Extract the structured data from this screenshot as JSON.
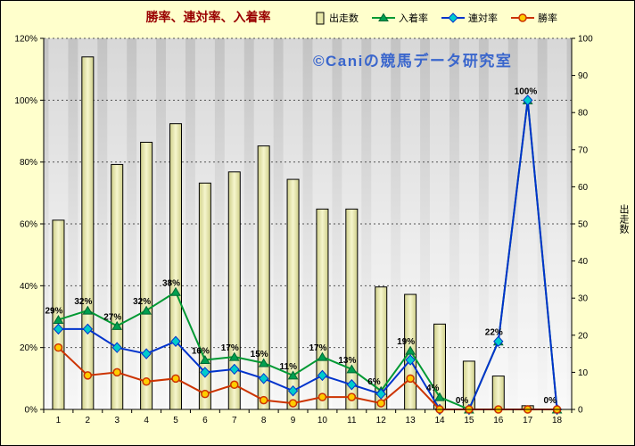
{
  "title": "勝率、連対率、入着率",
  "watermark": "©Caniの競馬データ研究室",
  "legend": [
    {
      "label": "出走数",
      "swatch": "bar-swatch"
    },
    {
      "label": "入着率",
      "swatch": "triangle-swatch"
    },
    {
      "label": "連対率",
      "swatch": "diamond-swatch"
    },
    {
      "label": "勝率",
      "swatch": "circle-swatch"
    }
  ],
  "colors": {
    "background": "#FFFFCC",
    "title": "#990000",
    "watermark": "#3A66CC",
    "bar_fill_edge": "#CFCF8A",
    "bar_fill_center": "#F6F6CD",
    "placing_rate": "#009933",
    "quinella_rate": "#0033CC",
    "win_rate": "#CC3300"
  },
  "chart_data": {
    "type": "bar",
    "subtype": "combo-bar-lines",
    "title": "勝率、連対率、入着率",
    "categories": [
      "1",
      "2",
      "3",
      "4",
      "5",
      "6",
      "7",
      "8",
      "9",
      "10",
      "11",
      "12",
      "13",
      "14",
      "15",
      "16",
      "17",
      "18"
    ],
    "bar_series": {
      "name": "出走数",
      "key": "starts",
      "axis": "right",
      "values": [
        51,
        95,
        66,
        72,
        77,
        61,
        64,
        71,
        62,
        54,
        54,
        33,
        31,
        23,
        13,
        9,
        1,
        0
      ]
    },
    "line_series": [
      {
        "name": "入着率",
        "key": "placing-rate",
        "marker": "triangle",
        "color": "#009933",
        "marker_fill": "#00A050",
        "values": [
          29,
          32,
          27,
          32,
          38,
          16,
          17,
          15,
          11,
          17,
          13,
          6,
          19,
          4,
          0,
          22,
          100,
          0
        ],
        "labels": [
          "29%",
          "32%",
          "27%",
          "32%",
          "38%",
          "16%",
          "17%",
          "15%",
          "11%",
          "17%",
          "13%",
          "6%",
          "19%",
          "4%",
          "0%",
          "22%",
          "100%",
          "0%"
        ]
      },
      {
        "name": "連対率",
        "key": "quinella-rate",
        "marker": "diamond",
        "color": "#0033CC",
        "marker_fill": "#00CCCC",
        "values": [
          26,
          26,
          20,
          18,
          22,
          12,
          13,
          10,
          6,
          11,
          8,
          5,
          16,
          0,
          0,
          22,
          100,
          0
        ]
      },
      {
        "name": "勝率",
        "key": "win-rate",
        "marker": "circle",
        "color": "#CC3300",
        "marker_fill": "#FFCC00",
        "values": [
          20,
          11,
          12,
          9,
          10,
          5,
          8,
          3,
          2,
          4,
          4,
          2,
          10,
          0,
          0,
          0,
          0,
          0
        ]
      }
    ],
    "left_axis": {
      "min": 0,
      "max": 120,
      "step": 20,
      "ticks": [
        "0%",
        "20%",
        "40%",
        "60%",
        "80%",
        "100%",
        "120%"
      ]
    },
    "right_axis": {
      "min": 0,
      "max": 100,
      "step": 10,
      "label": "出走数",
      "ticks": [
        "0",
        "10",
        "20",
        "30",
        "40",
        "50",
        "60",
        "70",
        "80",
        "90",
        "100"
      ]
    },
    "grid": "horizontal-dashed",
    "legend_position": "top"
  }
}
